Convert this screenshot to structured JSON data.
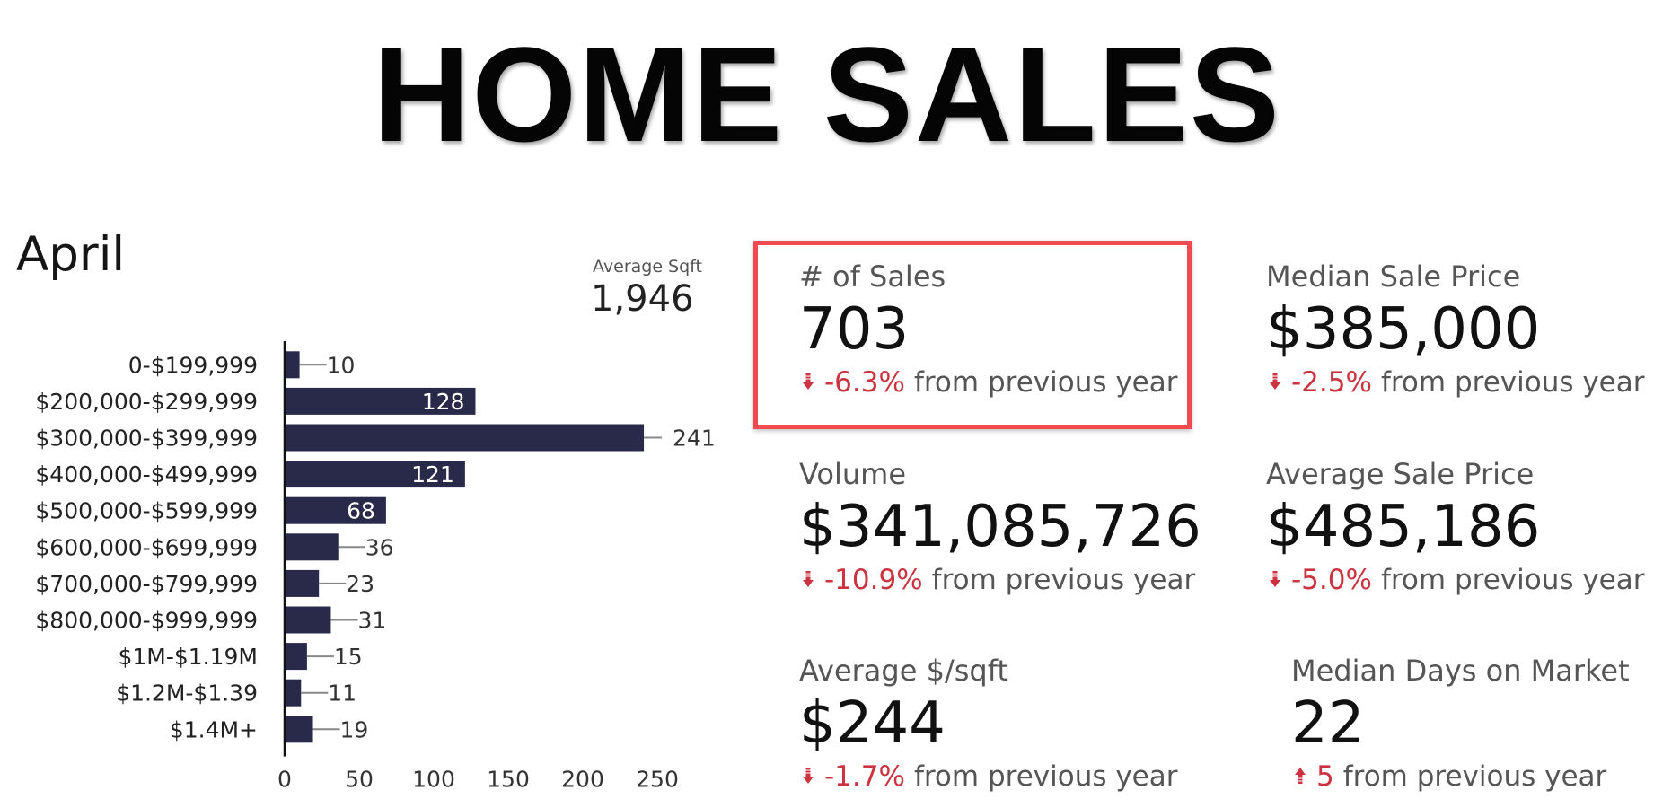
{
  "title": "HOME SALES",
  "month": "April",
  "avg_sqft": {
    "label": "Average Sqft",
    "value": "1,946"
  },
  "colors": {
    "bar": "#29294a",
    "down": "#cc3340",
    "up": "#cc3340",
    "highlight": "#ef4a4f"
  },
  "kpis": [
    {
      "label": "# of Sales",
      "value": "703",
      "direction": "down",
      "delta": "-6.3%",
      "suffix": "from previous year",
      "icon": "down-arrow-icon"
    },
    {
      "label": "Median Sale Price",
      "value": "$385,000",
      "direction": "down",
      "delta": "-2.5%",
      "suffix": "from previous year",
      "icon": "down-arrow-icon"
    },
    {
      "label": "Volume",
      "value": "$341,085,726",
      "direction": "down",
      "delta": "-10.9%",
      "suffix": "from previous year",
      "icon": "down-arrow-icon"
    },
    {
      "label": "Average Sale Price",
      "value": "$485,186",
      "direction": "down",
      "delta": "-5.0%",
      "suffix": "from previous year",
      "icon": "down-arrow-icon"
    },
    {
      "label": "Average $/sqft",
      "value": "$244",
      "direction": "down",
      "delta": "-1.7%",
      "suffix": "from previous year",
      "icon": "down-arrow-icon"
    },
    {
      "label": "Median Days on Market",
      "value": "22",
      "direction": "up",
      "delta": "5",
      "suffix": "from previous year",
      "icon": "up-arrow-icon"
    }
  ],
  "chart_data": {
    "type": "bar",
    "orientation": "horizontal",
    "title": "",
    "xlabel": "",
    "ylabel": "",
    "categories": [
      "0-$199,999",
      "$200,000-$299,999",
      "$300,000-$399,999",
      "$400,000-$499,999",
      "$500,000-$599,999",
      "$600,000-$699,999",
      "$700,000-$799,999",
      "$800,000-$999,999",
      "$1M-$1.19M",
      "$1.2M-$1.39",
      "$1.4M+"
    ],
    "values": [
      10,
      128,
      241,
      121,
      68,
      36,
      23,
      31,
      15,
      11,
      19
    ],
    "value_labels": [
      "10",
      "128",
      "241",
      "121",
      "68",
      "36",
      "23",
      "31",
      "15",
      "11",
      "19"
    ],
    "xticks": [
      "0",
      "50",
      "100",
      "150",
      "200",
      "250"
    ],
    "xlim": [
      0,
      280
    ],
    "grid": false,
    "legend": "none"
  }
}
